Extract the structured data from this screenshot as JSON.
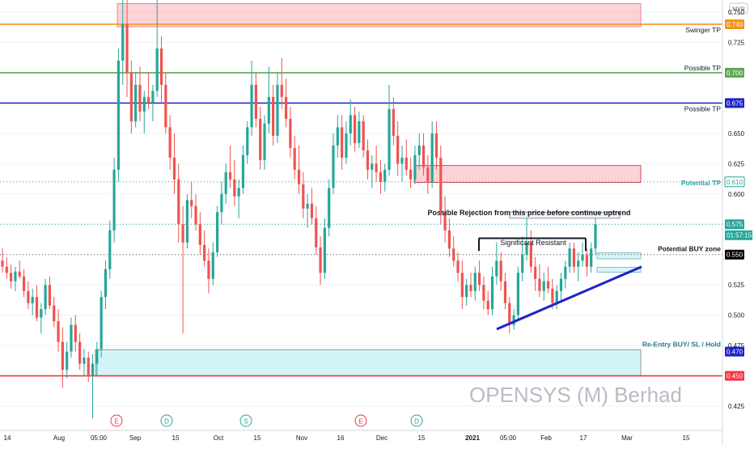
{
  "chart_data": {
    "type": "candlestick",
    "symbol_watermark": "OPENSYS (M) Berhad",
    "currency": "MYR",
    "ylim": [
      0.405,
      0.76
    ],
    "y_ticks": [
      "0.425",
      "0.450",
      "0.475",
      "0.500",
      "0.525",
      "0.550",
      "0.575",
      "0.600",
      "0.625",
      "0.650",
      "0.675",
      "0.700",
      "0.725",
      "0.750"
    ],
    "y_tick_values": [
      0.425,
      0.45,
      0.475,
      0.5,
      0.525,
      0.55,
      0.575,
      0.6,
      0.625,
      0.65,
      0.675,
      0.7,
      0.725,
      0.75
    ],
    "x_ticks": [
      "14",
      "Aug",
      "05:00",
      "Sep",
      "15",
      "Oct",
      "15",
      "Nov",
      "16",
      "Dec",
      "15",
      "2021",
      "05:00",
      "Feb",
      "17",
      "Mar",
      "15"
    ],
    "event_markers": [
      "E",
      "D",
      "S",
      "E",
      "D"
    ],
    "price_lines": [
      {
        "label": "Swinger TP",
        "value": "0.740",
        "price": 0.74,
        "color": "#f7931a"
      },
      {
        "label": "Possible TP",
        "value": "0.700",
        "price": 0.7,
        "color": "#5aaa4f"
      },
      {
        "label": "Possible TP",
        "value": "0.675",
        "price": 0.675,
        "color": "#1e22c8"
      },
      {
        "label": "Re-Entry BUY/ SL / Hold",
        "value": "0.450",
        "price": 0.45,
        "color": "#f23645"
      }
    ],
    "axis_labels": [
      {
        "name": "potential-tp",
        "text": "Potential TP",
        "value": "0.610",
        "price": 0.61
      },
      {
        "name": "last-price",
        "text": "",
        "value": "0.575",
        "price": 0.575
      },
      {
        "name": "countdown",
        "text": "",
        "value": "01:57:15",
        "price": 0.566
      },
      {
        "name": "potential-buy",
        "text": "Potential BUY zone",
        "value": "0.550",
        "price": 0.55
      },
      {
        "name": "reentry",
        "text": "",
        "value": "0.470",
        "price": 0.47
      }
    ],
    "annotations": {
      "rejection_note": "Possible Rejection from this price before continue uptrend",
      "resistance_note": "Significant Resistant"
    },
    "candles_ohlc": [
      [
        0.545,
        0.555,
        0.535,
        0.54
      ],
      [
        0.54,
        0.548,
        0.53,
        0.535
      ],
      [
        0.535,
        0.542,
        0.522,
        0.528
      ],
      [
        0.528,
        0.54,
        0.52,
        0.536
      ],
      [
        0.536,
        0.545,
        0.53,
        0.532
      ],
      [
        0.532,
        0.538,
        0.515,
        0.52
      ],
      [
        0.52,
        0.528,
        0.505,
        0.51
      ],
      [
        0.51,
        0.522,
        0.5,
        0.515
      ],
      [
        0.515,
        0.525,
        0.495,
        0.498
      ],
      [
        0.498,
        0.51,
        0.485,
        0.505
      ],
      [
        0.505,
        0.53,
        0.5,
        0.525
      ],
      [
        0.525,
        0.532,
        0.505,
        0.508
      ],
      [
        0.508,
        0.515,
        0.49,
        0.495
      ],
      [
        0.495,
        0.505,
        0.47,
        0.478
      ],
      [
        0.478,
        0.49,
        0.44,
        0.455
      ],
      [
        0.455,
        0.478,
        0.448,
        0.47
      ],
      [
        0.47,
        0.498,
        0.465,
        0.492
      ],
      [
        0.492,
        0.5,
        0.47,
        0.478
      ],
      [
        0.478,
        0.485,
        0.455,
        0.46
      ],
      [
        0.46,
        0.472,
        0.45,
        0.465
      ],
      [
        0.465,
        0.47,
        0.445,
        0.45
      ],
      [
        0.45,
        0.468,
        0.415,
        0.46
      ],
      [
        0.46,
        0.478,
        0.45,
        0.472
      ],
      [
        0.472,
        0.52,
        0.465,
        0.515
      ],
      [
        0.515,
        0.545,
        0.505,
        0.538
      ],
      [
        0.538,
        0.578,
        0.53,
        0.57
      ],
      [
        0.57,
        0.63,
        0.56,
        0.62
      ],
      [
        0.62,
        0.72,
        0.61,
        0.71
      ],
      [
        0.71,
        0.76,
        0.69,
        0.74
      ],
      [
        0.74,
        0.76,
        0.68,
        0.7
      ],
      [
        0.7,
        0.71,
        0.65,
        0.66
      ],
      [
        0.66,
        0.7,
        0.655,
        0.69
      ],
      [
        0.69,
        0.705,
        0.66,
        0.668
      ],
      [
        0.668,
        0.685,
        0.65,
        0.68
      ],
      [
        0.68,
        0.7,
        0.67,
        0.675
      ],
      [
        0.675,
        0.69,
        0.66,
        0.685
      ],
      [
        0.685,
        0.76,
        0.68,
        0.72
      ],
      [
        0.72,
        0.73,
        0.675,
        0.69
      ],
      [
        0.69,
        0.7,
        0.65,
        0.655
      ],
      [
        0.655,
        0.665,
        0.62,
        0.63
      ],
      [
        0.63,
        0.65,
        0.6,
        0.612
      ],
      [
        0.612,
        0.625,
        0.56,
        0.575
      ],
      [
        0.575,
        0.59,
        0.485,
        0.56
      ],
      [
        0.56,
        0.6,
        0.555,
        0.595
      ],
      [
        0.595,
        0.61,
        0.58,
        0.59
      ],
      [
        0.59,
        0.6,
        0.57,
        0.575
      ],
      [
        0.575,
        0.585,
        0.55,
        0.558
      ],
      [
        0.558,
        0.57,
        0.54,
        0.545
      ],
      [
        0.545,
        0.555,
        0.518,
        0.53
      ],
      [
        0.53,
        0.56,
        0.525,
        0.552
      ],
      [
        0.552,
        0.59,
        0.548,
        0.585
      ],
      [
        0.585,
        0.61,
        0.575,
        0.6
      ],
      [
        0.6,
        0.625,
        0.592,
        0.618
      ],
      [
        0.618,
        0.64,
        0.605,
        0.612
      ],
      [
        0.612,
        0.628,
        0.59,
        0.598
      ],
      [
        0.598,
        0.612,
        0.58,
        0.605
      ],
      [
        0.605,
        0.64,
        0.6,
        0.632
      ],
      [
        0.632,
        0.66,
        0.625,
        0.655
      ],
      [
        0.655,
        0.71,
        0.648,
        0.69
      ],
      [
        0.69,
        0.7,
        0.655,
        0.662
      ],
      [
        0.662,
        0.672,
        0.62,
        0.628
      ],
      [
        0.628,
        0.665,
        0.62,
        0.658
      ],
      [
        0.658,
        0.705,
        0.65,
        0.68
      ],
      [
        0.68,
        0.69,
        0.64,
        0.648
      ],
      [
        0.648,
        0.7,
        0.642,
        0.69
      ],
      [
        0.69,
        0.712,
        0.67,
        0.68
      ],
      [
        0.68,
        0.695,
        0.655,
        0.662
      ],
      [
        0.662,
        0.672,
        0.63,
        0.638
      ],
      [
        0.638,
        0.648,
        0.612,
        0.62
      ],
      [
        0.62,
        0.64,
        0.6,
        0.608
      ],
      [
        0.608,
        0.618,
        0.58,
        0.588
      ],
      [
        0.588,
        0.6,
        0.572,
        0.592
      ],
      [
        0.592,
        0.605,
        0.575,
        0.58
      ],
      [
        0.58,
        0.59,
        0.55,
        0.556
      ],
      [
        0.556,
        0.565,
        0.525,
        0.535
      ],
      [
        0.535,
        0.58,
        0.53,
        0.572
      ],
      [
        0.572,
        0.612,
        0.565,
        0.605
      ],
      [
        0.605,
        0.65,
        0.6,
        0.64
      ],
      [
        0.64,
        0.665,
        0.63,
        0.655
      ],
      [
        0.655,
        0.665,
        0.62,
        0.63
      ],
      [
        0.63,
        0.66,
        0.625,
        0.65
      ],
      [
        0.65,
        0.678,
        0.64,
        0.665
      ],
      [
        0.665,
        0.672,
        0.635,
        0.642
      ],
      [
        0.642,
        0.668,
        0.638,
        0.66
      ],
      [
        0.66,
        0.665,
        0.63,
        0.636
      ],
      [
        0.636,
        0.645,
        0.612,
        0.62
      ],
      [
        0.62,
        0.632,
        0.605,
        0.625
      ],
      [
        0.625,
        0.64,
        0.61,
        0.618
      ],
      [
        0.618,
        0.628,
        0.6,
        0.61
      ],
      [
        0.61,
        0.625,
        0.602,
        0.62
      ],
      [
        0.62,
        0.69,
        0.615,
        0.67
      ],
      [
        0.67,
        0.68,
        0.64,
        0.648
      ],
      [
        0.648,
        0.66,
        0.615,
        0.625
      ],
      [
        0.625,
        0.64,
        0.61,
        0.63
      ],
      [
        0.63,
        0.645,
        0.615,
        0.62
      ],
      [
        0.62,
        0.63,
        0.605,
        0.612
      ],
      [
        0.612,
        0.64,
        0.608,
        0.632
      ],
      [
        0.632,
        0.65,
        0.62,
        0.64
      ],
      [
        0.64,
        0.65,
        0.615,
        0.622
      ],
      [
        0.622,
        0.632,
        0.6,
        0.61
      ],
      [
        0.61,
        0.66,
        0.605,
        0.65
      ],
      [
        0.65,
        0.66,
        0.62,
        0.63
      ],
      [
        0.63,
        0.64,
        0.575,
        0.585
      ],
      [
        0.585,
        0.598,
        0.56,
        0.57
      ],
      [
        0.57,
        0.58,
        0.548,
        0.555
      ],
      [
        0.555,
        0.565,
        0.54,
        0.545
      ],
      [
        0.545,
        0.552,
        0.528,
        0.535
      ],
      [
        0.535,
        0.545,
        0.505,
        0.515
      ],
      [
        0.515,
        0.53,
        0.508,
        0.525
      ],
      [
        0.525,
        0.535,
        0.515,
        0.52
      ],
      [
        0.52,
        0.54,
        0.512,
        0.535
      ],
      [
        0.535,
        0.545,
        0.52,
        0.525
      ],
      [
        0.525,
        0.532,
        0.505,
        0.512
      ],
      [
        0.512,
        0.52,
        0.5,
        0.505
      ],
      [
        0.505,
        0.54,
        0.5,
        0.532
      ],
      [
        0.532,
        0.56,
        0.525,
        0.545
      ],
      [
        0.545,
        0.552,
        0.52,
        0.528
      ],
      [
        0.528,
        0.535,
        0.505,
        0.51
      ],
      [
        0.51,
        0.515,
        0.485,
        0.492
      ],
      [
        0.492,
        0.505,
        0.488,
        0.5
      ],
      [
        0.5,
        0.54,
        0.495,
        0.535
      ],
      [
        0.535,
        0.565,
        0.528,
        0.55
      ],
      [
        0.55,
        0.58,
        0.545,
        0.56
      ],
      [
        0.56,
        0.57,
        0.535,
        0.54
      ],
      [
        0.54,
        0.548,
        0.52,
        0.53
      ],
      [
        0.53,
        0.542,
        0.515,
        0.52
      ],
      [
        0.52,
        0.535,
        0.512,
        0.528
      ],
      [
        0.528,
        0.54,
        0.518,
        0.522
      ],
      [
        0.522,
        0.53,
        0.505,
        0.51
      ],
      [
        0.51,
        0.525,
        0.505,
        0.52
      ],
      [
        0.52,
        0.535,
        0.512,
        0.53
      ],
      [
        0.53,
        0.545,
        0.522,
        0.54
      ],
      [
        0.54,
        0.56,
        0.535,
        0.555
      ],
      [
        0.555,
        0.56,
        0.535,
        0.54
      ],
      [
        0.54,
        0.552,
        0.528,
        0.545
      ],
      [
        0.545,
        0.56,
        0.54,
        0.55
      ],
      [
        0.55,
        0.555,
        0.532,
        0.54
      ],
      [
        0.54,
        0.56,
        0.535,
        0.555
      ],
      [
        0.555,
        0.58,
        0.55,
        0.575
      ]
    ]
  }
}
